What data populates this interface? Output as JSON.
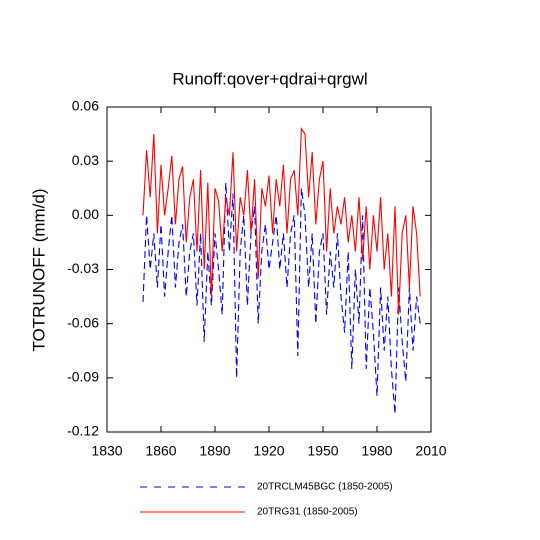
{
  "chart_data": {
    "type": "line",
    "title": "Runoff:qover+qdrai+qrgwl",
    "y_label": "TOTRUNOFF  (mm/d)",
    "xlim": [
      1830,
      2010
    ],
    "xticks": [
      1830,
      1860,
      1890,
      1920,
      1950,
      1980,
      2010
    ],
    "ylim": [
      -0.12,
      0.06
    ],
    "yticks": [
      0.06,
      0.03,
      {
        "value": 0,
        "label": "0.00"
      },
      -0.03,
      -0.06,
      -0.09,
      -0.12
    ],
    "x": [
      1850,
      1852,
      1854,
      1856,
      1858,
      1860,
      1862,
      1864,
      1866,
      1868,
      1870,
      1872,
      1874,
      1876,
      1878,
      1880,
      1882,
      1884,
      1886,
      1888,
      1890,
      1892,
      1894,
      1896,
      1898,
      1900,
      1902,
      1904,
      1906,
      1908,
      1910,
      1912,
      1914,
      1916,
      1918,
      1920,
      1922,
      1924,
      1926,
      1928,
      1930,
      1932,
      1934,
      1936,
      1938,
      1940,
      1942,
      1944,
      1946,
      1948,
      1950,
      1952,
      1954,
      1956,
      1958,
      1960,
      1962,
      1964,
      1966,
      1968,
      1970,
      1972,
      1974,
      1976,
      1978,
      1980,
      1982,
      1984,
      1986,
      1988,
      1990,
      1992,
      1994,
      1996,
      1998,
      2000,
      2002,
      2004
    ],
    "series": [
      {
        "name": "20TRCLM45BGC (1850-2005)",
        "color": "#0000ff",
        "dashed": true,
        "values": [
          -0.048,
          0.0,
          -0.03,
          -0.01,
          -0.04,
          -0.005,
          -0.045,
          -0.02,
          0.0,
          -0.04,
          -0.015,
          -0.005,
          -0.045,
          -0.02,
          -0.01,
          -0.05,
          -0.01,
          -0.07,
          -0.02,
          -0.05,
          -0.01,
          -0.03,
          -0.055,
          0.018,
          -0.02,
          0.012,
          -0.09,
          -0.02,
          0.0,
          -0.05,
          -0.01,
          0.005,
          -0.06,
          -0.02,
          -0.005,
          -0.03,
          -0.015,
          0.0,
          -0.03,
          -0.01,
          -0.04,
          -0.01,
          0.0,
          -0.078,
          0.015,
          0.0,
          -0.04,
          -0.01,
          -0.06,
          -0.02,
          -0.01,
          -0.055,
          -0.02,
          -0.04,
          -0.01,
          -0.045,
          -0.065,
          -0.02,
          -0.085,
          -0.03,
          -0.06,
          0.0,
          -0.085,
          -0.04,
          -0.065,
          -0.1,
          -0.04,
          -0.075,
          -0.045,
          -0.085,
          -0.11,
          -0.04,
          -0.07,
          -0.092,
          -0.04,
          -0.075,
          -0.045,
          -0.06
        ]
      },
      {
        "name": "20TRG31 (1850-2005)",
        "color": "#ff0000",
        "dashed": false,
        "values": [
          0.0,
          0.036,
          0.01,
          0.045,
          -0.01,
          0.028,
          0.0,
          0.015,
          0.033,
          -0.005,
          0.02,
          0.027,
          -0.015,
          0.01,
          0.02,
          -0.02,
          0.025,
          -0.03,
          0.018,
          -0.045,
          0.015,
          0.008,
          -0.02,
          0.01,
          0.0,
          0.035,
          -0.02,
          0.01,
          0.0,
          0.025,
          -0.01,
          0.02,
          -0.035,
          0.015,
          0.005,
          0.022,
          -0.01,
          0.02,
          0.005,
          0.028,
          -0.01,
          0.02,
          0.025,
          0.0,
          0.048,
          0.045,
          0.01,
          0.035,
          -0.005,
          0.02,
          0.03,
          -0.02,
          0.015,
          -0.01,
          0.005,
          -0.005,
          0.01,
          -0.015,
          0.0,
          -0.02,
          0.01,
          -0.025,
          0.005,
          -0.03,
          0.0,
          -0.02,
          0.01,
          -0.03,
          -0.01,
          -0.045,
          0.005,
          -0.055,
          -0.01,
          0.0,
          -0.04,
          0.005,
          -0.01,
          -0.045
        ]
      }
    ]
  }
}
